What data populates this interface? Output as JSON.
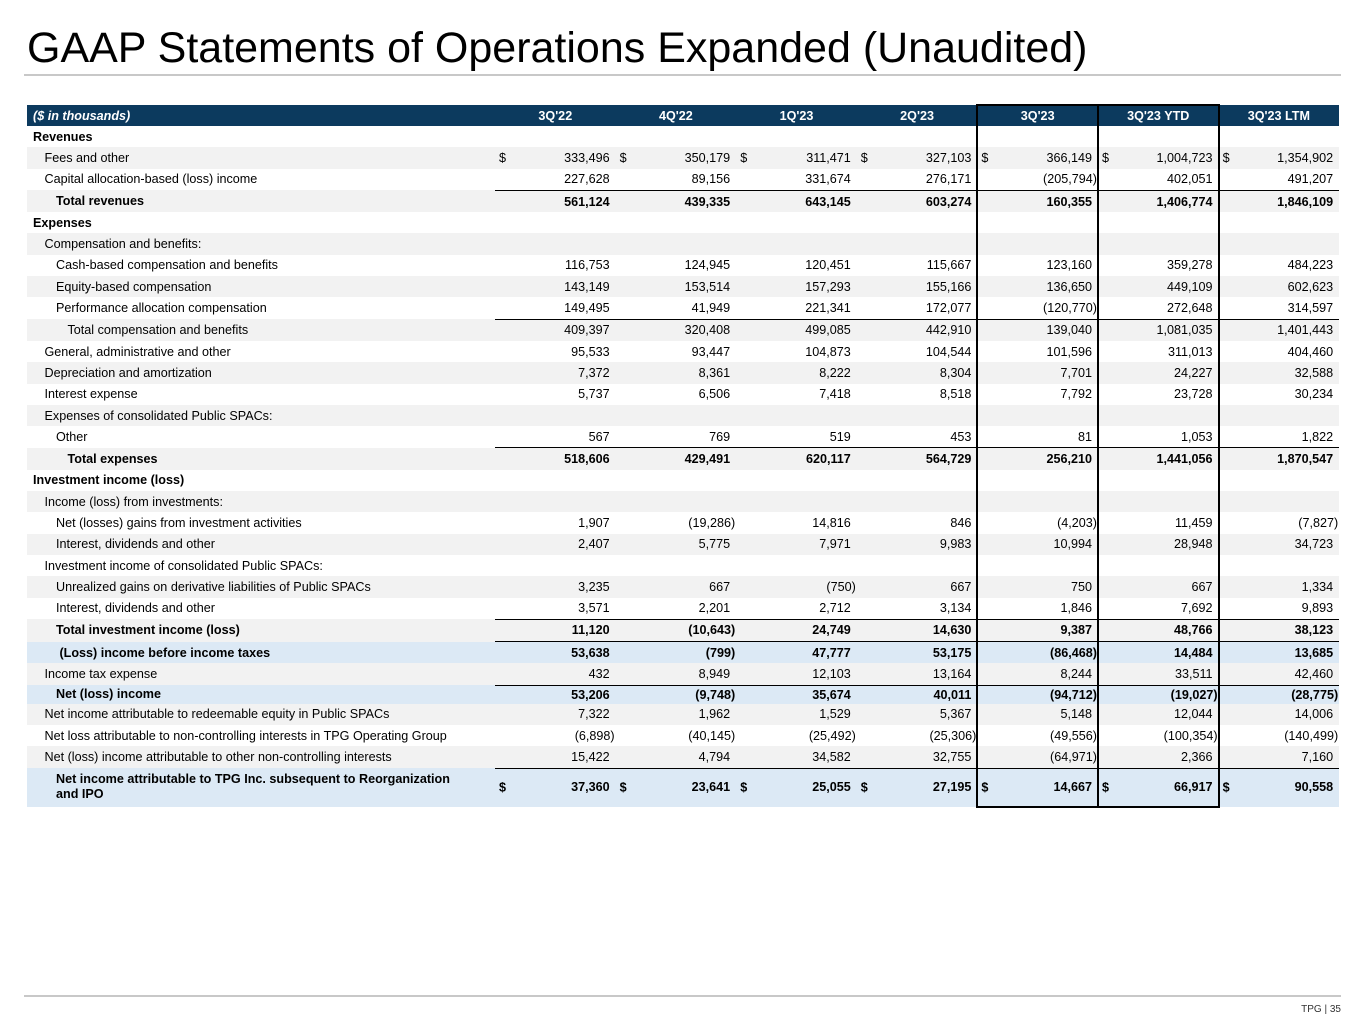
{
  "title": "GAAP Statements of Operations Expanded (Unaudited)",
  "footer": "TPG | 35",
  "table": {
    "unit_label": "($ in thousands)",
    "columns": [
      "3Q'22",
      "4Q'22",
      "1Q'23",
      "2Q'23",
      "3Q'23",
      "3Q'23 YTD",
      "3Q'23 LTM"
    ],
    "highlighted_columns": [
      "3Q'23",
      "3Q'23 YTD"
    ],
    "currency_symbol": "$",
    "rows": [
      {
        "label": "Revenues",
        "level": 0,
        "style": "section",
        "values": []
      },
      {
        "label": "Fees and other",
        "level": 1,
        "style": "normal",
        "currency": true,
        "values": [
          "333,496",
          "350,179",
          "311,471",
          "327,103",
          "366,149",
          "1,004,723",
          "1,354,902"
        ]
      },
      {
        "label": "Capital allocation-based (loss) income",
        "level": 1,
        "style": "normal",
        "values": [
          "227,628",
          "89,156",
          "331,674",
          "276,171",
          "(205,794)",
          "402,051",
          "491,207"
        ]
      },
      {
        "label": "Total revenues",
        "level": 2,
        "style": "total",
        "values": [
          "561,124",
          "439,335",
          "643,145",
          "603,274",
          "160,355",
          "1,406,774",
          "1,846,109"
        ]
      },
      {
        "label": "Expenses",
        "level": 0,
        "style": "section",
        "values": []
      },
      {
        "label": "Compensation and benefits:",
        "level": 1,
        "style": "normal",
        "values": []
      },
      {
        "label": "Cash-based compensation and benefits",
        "level": 2,
        "style": "normal",
        "values": [
          "116,753",
          "124,945",
          "120,451",
          "115,667",
          "123,160",
          "359,278",
          "484,223"
        ]
      },
      {
        "label": "Equity-based compensation",
        "level": 2,
        "style": "normal",
        "values": [
          "143,149",
          "153,514",
          "157,293",
          "155,166",
          "136,650",
          "449,109",
          "602,623"
        ]
      },
      {
        "label": "Performance allocation compensation",
        "level": 2,
        "style": "normal",
        "values": [
          "149,495",
          "41,949",
          "221,341",
          "172,077",
          "(120,770)",
          "272,648",
          "314,597"
        ]
      },
      {
        "label": "Total compensation and benefits",
        "level": 3,
        "style": "subtotal",
        "values": [
          "409,397",
          "320,408",
          "499,085",
          "442,910",
          "139,040",
          "1,081,035",
          "1,401,443"
        ]
      },
      {
        "label": "General, administrative and other",
        "level": 1,
        "style": "normal",
        "values": [
          "95,533",
          "93,447",
          "104,873",
          "104,544",
          "101,596",
          "311,013",
          "404,460"
        ]
      },
      {
        "label": "Depreciation and amortization",
        "level": 1,
        "style": "normal",
        "values": [
          "7,372",
          "8,361",
          "8,222",
          "8,304",
          "7,701",
          "24,227",
          "32,588"
        ]
      },
      {
        "label": "Interest expense",
        "level": 1,
        "style": "normal",
        "values": [
          "5,737",
          "6,506",
          "7,418",
          "8,518",
          "7,792",
          "23,728",
          "30,234"
        ]
      },
      {
        "label": "Expenses of consolidated Public SPACs:",
        "level": 1,
        "style": "normal",
        "values": []
      },
      {
        "label": "Other",
        "level": 2,
        "style": "normal",
        "values": [
          "567",
          "769",
          "519",
          "453",
          "81",
          "1,053",
          "1,822"
        ]
      },
      {
        "label": "Total expenses",
        "level": 3,
        "style": "total",
        "values": [
          "518,606",
          "429,491",
          "620,117",
          "564,729",
          "256,210",
          "1,441,056",
          "1,870,547"
        ]
      },
      {
        "label": "Investment income (loss)",
        "level": 0,
        "style": "section",
        "values": []
      },
      {
        "label": "Income (loss) from investments:",
        "level": 1,
        "style": "normal",
        "values": []
      },
      {
        "label": "Net (losses) gains from investment activities",
        "level": 2,
        "style": "normal",
        "values": [
          "1,907",
          "(19,286)",
          "14,816",
          "846",
          "(4,203)",
          "11,459",
          "(7,827)"
        ]
      },
      {
        "label": "Interest, dividends and other",
        "level": 2,
        "style": "normal",
        "values": [
          "2,407",
          "5,775",
          "7,971",
          "9,983",
          "10,994",
          "28,948",
          "34,723"
        ]
      },
      {
        "label": "Investment income of consolidated Public SPACs:",
        "level": 1,
        "style": "normal",
        "values": []
      },
      {
        "label": "Unrealized gains on derivative liabilities of Public SPACs",
        "level": 2,
        "style": "normal",
        "values": [
          "3,235",
          "667",
          "(750)",
          "667",
          "750",
          "667",
          "1,334"
        ]
      },
      {
        "label": "Interest, dividends and other",
        "level": 2,
        "style": "normal",
        "values": [
          "3,571",
          "2,201",
          "2,712",
          "3,134",
          "1,846",
          "7,692",
          "9,893"
        ]
      },
      {
        "label": "Total investment income (loss)",
        "level": 2,
        "style": "total",
        "values": [
          "11,120",
          "(10,643)",
          "24,749",
          "14,630",
          "9,387",
          "48,766",
          "38,123"
        ]
      },
      {
        "label": "(Loss) income before income taxes",
        "level": 2.3,
        "style": "key-total",
        "values": [
          "53,638",
          "(799)",
          "47,777",
          "53,175",
          "(86,468)",
          "14,484",
          "13,685"
        ]
      },
      {
        "label": "Income tax expense",
        "level": 1,
        "style": "normal",
        "values": [
          "432",
          "8,949",
          "12,103",
          "13,164",
          "8,244",
          "33,511",
          "42,460"
        ]
      },
      {
        "label": "Net (loss) income",
        "level": 2,
        "style": "key-total",
        "values": [
          "53,206",
          "(9,748)",
          "35,674",
          "40,011",
          "(94,712)",
          "(19,027)",
          "(28,775)"
        ]
      },
      {
        "label": "Net income attributable to redeemable equity in Public SPACs",
        "level": 1,
        "style": "normal",
        "values": [
          "7,322",
          "1,962",
          "1,529",
          "5,367",
          "5,148",
          "12,044",
          "14,006"
        ]
      },
      {
        "label": "Net loss attributable to non-controlling interests in TPG Operating Group",
        "level": 1,
        "style": "normal",
        "values": [
          "(6,898)",
          "(40,145)",
          "(25,492)",
          "(25,306)",
          "(49,556)",
          "(100,354)",
          "(140,499)"
        ]
      },
      {
        "label": "Net (loss) income attributable to other non-controlling interests",
        "level": 1,
        "style": "normal",
        "values": [
          "15,422",
          "4,794",
          "34,582",
          "32,755",
          "(64,971)",
          "2,366",
          "7,160"
        ]
      },
      {
        "label": "Net income attributable to TPG Inc. subsequent to Reorganization and IPO",
        "level": 2,
        "style": "key-total",
        "currency": true,
        "values": [
          "37,360",
          "23,641",
          "25,055",
          "27,195",
          "14,667",
          "66,917",
          "90,558"
        ]
      }
    ]
  },
  "colors": {
    "header_bg": "#0c3a5e",
    "row_shade": "#f2f2f2",
    "highlight_row": "#dce9f5"
  }
}
